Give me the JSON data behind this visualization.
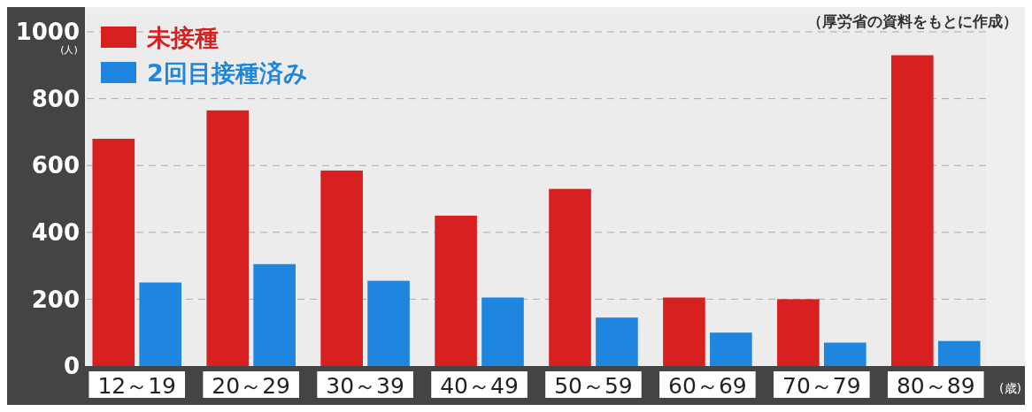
{
  "chart_data": {
    "type": "bar",
    "categories": [
      "12～19",
      "20～29",
      "30～39",
      "40～49",
      "50～59",
      "60～69",
      "70～79",
      "80～89"
    ],
    "series": [
      {
        "name": "未接種",
        "color": "#d92020",
        "values": [
          680,
          765,
          585,
          450,
          530,
          205,
          200,
          930
        ]
      },
      {
        "name": "2回目接種済み",
        "color": "#1f86e0",
        "values": [
          250,
          305,
          255,
          205,
          145,
          100,
          70,
          75
        ]
      }
    ],
    "ylim": [
      0,
      1000
    ],
    "yticks": [
      0,
      200,
      400,
      600,
      800,
      1000
    ],
    "ylabel": "(人)",
    "xlabel": "(歳)",
    "grid": "y",
    "legend": "top left",
    "annotations": [
      "（厚労省の資料をもとに作成）"
    ]
  }
}
